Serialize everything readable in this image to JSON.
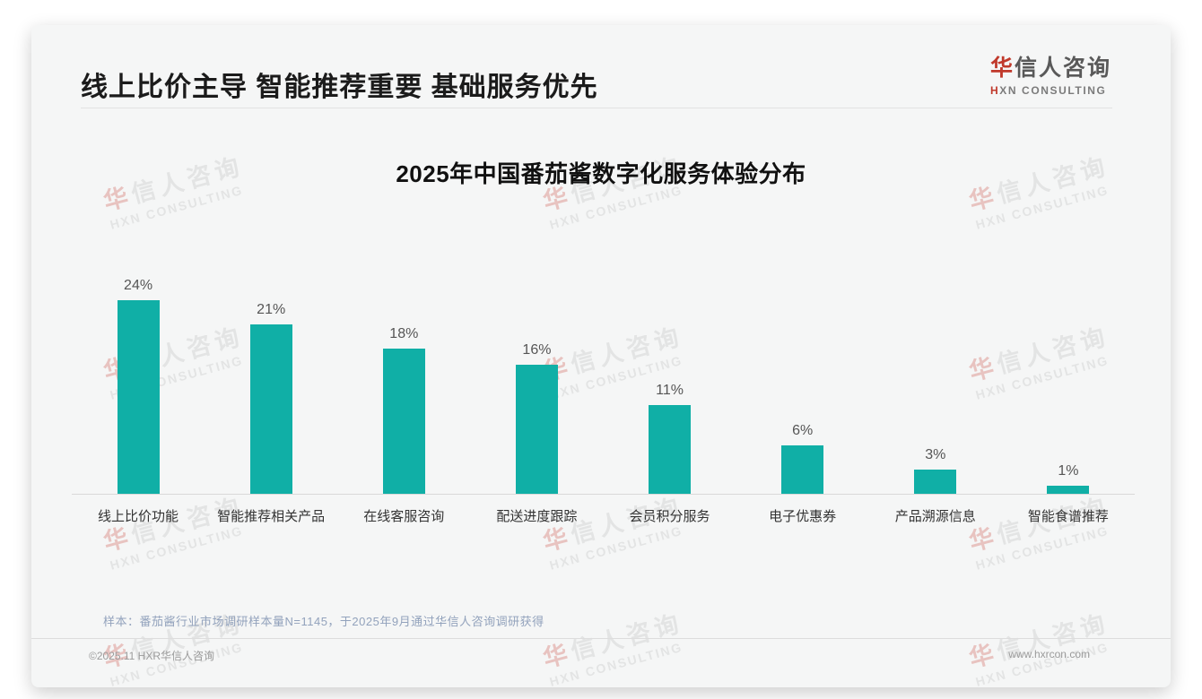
{
  "page_title": "线上比价主导 智能推荐重要 基础服务优先",
  "logo": {
    "cn_accent": "华",
    "cn_rest": "信人咨询",
    "en_accent": "H",
    "en_rest": "XN CONSULTING"
  },
  "chart_data": {
    "type": "bar",
    "title": "2025年中国番茄酱数字化服务体验分布",
    "categories": [
      "线上比价功能",
      "智能推荐相关产品",
      "在线客服咨询",
      "配送进度跟踪",
      "会员积分服务",
      "电子优惠券",
      "产品溯源信息",
      "智能食谱推荐"
    ],
    "values": [
      24,
      21,
      18,
      16,
      11,
      6,
      3,
      1
    ],
    "value_labels": [
      "24%",
      "21%",
      "18%",
      "16%",
      "11%",
      "6%",
      "3%",
      "1%"
    ],
    "unit": "%",
    "xlabel": "",
    "ylabel": "",
    "ylim": [
      0,
      26
    ],
    "grid": false,
    "legend": "none",
    "bar_color": "#10afa6"
  },
  "footnote": "样本：番茄酱行业市场调研样本量N=1145，于2025年9月通过华信人咨询调研获得",
  "footer": {
    "left": "©2025.11 HXR华信人咨询",
    "right": "www.hxrcon.com"
  },
  "watermark": {
    "cn_accent": "华",
    "cn_rest": "信人咨询",
    "en": "HXN CONSULTING"
  },
  "colors": {
    "accent_red": "#c0392b",
    "bar_teal": "#10afa6"
  }
}
